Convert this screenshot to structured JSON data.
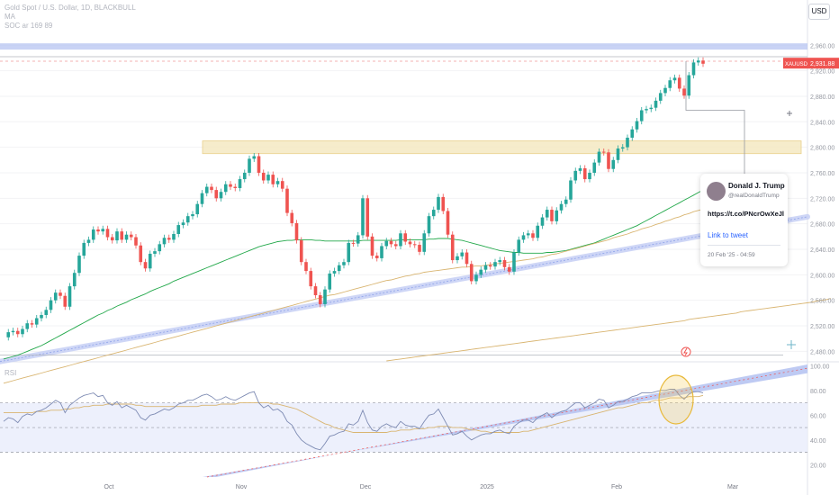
{
  "header": {
    "title": "Gold Spot / U.S. Dollar, 1D, BLACKBULL",
    "line2": "MA",
    "line3": "SOC ar 169 89",
    "currency_button": "USD"
  },
  "price_tag": {
    "symbol": "XAUUSD",
    "price": "2,931.88"
  },
  "tweet": {
    "name": "Donald J. Trump",
    "handle": "@realDonaldTrump",
    "link": "https://t.co/PNcrOwXeJl",
    "link_label": "Link to tweet",
    "date": "20 Feb '25 - 04:59"
  },
  "rsi_label": "RSI",
  "colors": {
    "up": "#26a69a",
    "down": "#ef5350",
    "ma_fast": "#22a84a",
    "ma_slow": "#d9b571",
    "band": "#b7c4f2",
    "zone": "#f5e9c3"
  },
  "chart_data": [
    {
      "type": "candlestick",
      "title": "Gold Spot / U.S. Dollar, 1D, BLACKBULL",
      "x_ticks": [
        "Oct",
        "Nov",
        "Dec",
        "2025",
        "Feb",
        "Mar"
      ],
      "y_ticks": [
        2480,
        2520,
        2560,
        2600,
        2640,
        2680,
        2720,
        2760,
        2800,
        2840,
        2880,
        2920,
        2960
      ],
      "y_tick_labels": [
        "2,480.00",
        "2,520.00",
        "2,560.00",
        "2,600.00",
        "2,640.00",
        "2,680.00",
        "2,720.00",
        "2,760.00",
        "2,800.00",
        "2,840.00",
        "2,880.00",
        "2,920.00",
        "2,960.00"
      ],
      "ylim": [
        2465,
        2990
      ],
      "last_price": 2931.88,
      "close": [
        2502,
        2510,
        2512,
        2507,
        2515,
        2524,
        2522,
        2532,
        2537,
        2545,
        2560,
        2572,
        2567,
        2550,
        2582,
        2603,
        2630,
        2650,
        2655,
        2671,
        2668,
        2672,
        2659,
        2654,
        2668,
        2655,
        2663,
        2659,
        2646,
        2620,
        2610,
        2633,
        2637,
        2648,
        2658,
        2655,
        2664,
        2678,
        2682,
        2692,
        2695,
        2711,
        2728,
        2738,
        2733,
        2720,
        2730,
        2742,
        2738,
        2736,
        2750,
        2760,
        2782,
        2786,
        2760,
        2748,
        2757,
        2742,
        2747,
        2735,
        2697,
        2681,
        2654,
        2620,
        2606,
        2582,
        2568,
        2554,
        2577,
        2602,
        2606,
        2615,
        2620,
        2650,
        2649,
        2662,
        2720,
        2660,
        2630,
        2626,
        2645,
        2653,
        2648,
        2645,
        2665,
        2652,
        2648,
        2647,
        2636,
        2665,
        2692,
        2702,
        2722,
        2700,
        2663,
        2623,
        2629,
        2635,
        2617,
        2590,
        2600,
        2608,
        2615,
        2613,
        2620,
        2623,
        2612,
        2605,
        2635,
        2655,
        2662,
        2665,
        2658,
        2677,
        2690,
        2702,
        2684,
        2701,
        2711,
        2718,
        2748,
        2763,
        2767,
        2750,
        2760,
        2776,
        2793,
        2792,
        2766,
        2780,
        2798,
        2800,
        2815,
        2828,
        2841,
        2858,
        2860,
        2862,
        2873,
        2885,
        2893,
        2905,
        2909,
        2892,
        2881,
        2913,
        2933,
        2936,
        2931
      ],
      "ma_fast": [
        2468,
        2470,
        2472,
        2474,
        2477,
        2480,
        2483,
        2486,
        2489,
        2493,
        2497,
        2501,
        2505,
        2509,
        2513,
        2517,
        2521,
        2525,
        2529,
        2533,
        2537,
        2540,
        2544,
        2547,
        2551,
        2554,
        2557,
        2561,
        2564,
        2567,
        2570,
        2574,
        2577,
        2580,
        2583,
        2586,
        2590,
        2593,
        2596,
        2599,
        2602,
        2605,
        2608,
        2611,
        2614,
        2617,
        2620,
        2623,
        2626,
        2629,
        2632,
        2635,
        2638,
        2641,
        2644,
        2646,
        2648,
        2650,
        2652,
        2653,
        2654,
        2654,
        2655,
        2655,
        2655,
        2655,
        2654,
        2654,
        2653,
        2653,
        2653,
        2653,
        2653,
        2653,
        2653,
        2653,
        2654,
        2654,
        2654,
        2654,
        2654,
        2654,
        2654,
        2654,
        2655,
        2655,
        2655,
        2655,
        2655,
        2655,
        2656,
        2656,
        2657,
        2657,
        2657,
        2656,
        2655,
        2654,
        2652,
        2650,
        2648,
        2646,
        2644,
        2642,
        2640,
        2638,
        2637,
        2636,
        2635,
        2635,
        2634,
        2634,
        2634,
        2634,
        2634,
        2635,
        2635,
        2636,
        2637,
        2638,
        2640,
        2642,
        2644,
        2646,
        2648,
        2650,
        2653,
        2656,
        2659,
        2662,
        2665,
        2668,
        2671,
        2674,
        2677,
        2681,
        2685,
        2689,
        2693,
        2697,
        2701,
        2705,
        2709,
        2713,
        2717,
        2721,
        2725,
        2729,
        2733
      ],
      "ma_slow": [
        2430,
        2432,
        2434,
        2436,
        2438,
        2440,
        2442,
        2444,
        2446,
        2448,
        2450,
        2452,
        2454,
        2456,
        2458,
        2460,
        2462,
        2464,
        2466,
        2468,
        2470,
        2472,
        2474,
        2476,
        2478,
        2480,
        2482,
        2484,
        2486,
        2488,
        2490,
        2492,
        2494,
        2496,
        2498,
        2500,
        2502,
        2504,
        2506,
        2508,
        2510,
        2512,
        2514,
        2516,
        2518,
        2520,
        2522,
        2524,
        2526,
        2528,
        2530,
        2532,
        2534,
        2536,
        2538,
        2540,
        2542,
        2544,
        2546,
        2548,
        2550,
        2552,
        2554,
        2556,
        2558,
        2560,
        2562,
        2564,
        2566,
        2568,
        2569,
        2571,
        2573,
        2575,
        2577,
        2579,
        2581,
        2583,
        2585,
        2587,
        2589,
        2591,
        2592,
        2594,
        2596,
        2598,
        2599,
        2601,
        2602,
        2604,
        2605,
        2606,
        2607,
        2608,
        2609,
        2610,
        2611,
        2612,
        2612,
        2613,
        2614,
        2614,
        2615,
        2616,
        2617,
        2618,
        2619,
        2620,
        2621,
        2622,
        2623,
        2624,
        2625,
        2627,
        2628,
        2630,
        2632,
        2633,
        2635,
        2637,
        2639,
        2641,
        2643,
        2645,
        2647,
        2649,
        2651,
        2653,
        2655,
        2658,
        2660,
        2662,
        2664,
        2667,
        2669,
        2672,
        2674,
        2676,
        2679,
        2681,
        2684,
        2686,
        2689,
        2691,
        2694,
        2696,
        2699,
        2701,
        2703
      ],
      "ma_slow2": [
        2465,
        2466,
        2467,
        2468,
        2469,
        2470,
        2471,
        2472,
        2473,
        2474,
        2475,
        2476,
        2477,
        2478,
        2479,
        2480,
        2481,
        2482,
        2483,
        2484,
        2485,
        2486,
        2487,
        2488,
        2489,
        2490,
        2491,
        2492,
        2493,
        2494,
        2495,
        2496,
        2497,
        2498,
        2499,
        2500,
        2501,
        2502,
        2503,
        2504,
        2505,
        2506,
        2507,
        2508,
        2509,
        2510,
        2511,
        2512,
        2513,
        2514,
        2515,
        2516,
        2517,
        2518,
        2519,
        2520,
        2521,
        2522,
        2523,
        2524,
        2525,
        2526,
        2527,
        2528,
        2530,
        2531,
        2532,
        2533,
        2534,
        2535,
        2536,
        2537,
        2538,
        2539,
        2540,
        2542,
        2543,
        2544,
        2545,
        2546,
        2547,
        2548,
        2549,
        2550,
        2551,
        2552,
        2553,
        2554,
        2555,
        2556,
        2557,
        2559,
        2560,
        2561,
        2563
      ]
    },
    {
      "type": "line",
      "title": "RSI",
      "y_ticks": [
        20,
        40,
        60,
        80,
        100
      ],
      "y_tick_labels": [
        "20.00",
        "40.00",
        "60.00",
        "80.00",
        "100.00"
      ],
      "ylim": [
        10,
        101
      ],
      "levels": [
        30,
        50,
        70
      ],
      "rsi": [
        55,
        58,
        57,
        54,
        59,
        61,
        60,
        63,
        64,
        66,
        69,
        72,
        70,
        62,
        68,
        71,
        74,
        76,
        77,
        78,
        75,
        76,
        70,
        68,
        71,
        66,
        68,
        66,
        64,
        58,
        56,
        60,
        61,
        63,
        65,
        64,
        66,
        69,
        70,
        72,
        72,
        74,
        76,
        77,
        75,
        72,
        73,
        75,
        73,
        72,
        74,
        76,
        78,
        79,
        70,
        66,
        68,
        64,
        65,
        62,
        55,
        52,
        45,
        40,
        37,
        35,
        33,
        32,
        37,
        43,
        44,
        46,
        47,
        53,
        52,
        55,
        64,
        54,
        48,
        47,
        51,
        53,
        51,
        50,
        55,
        52,
        51,
        51,
        49,
        55,
        60,
        61,
        65,
        58,
        51,
        44,
        45,
        47,
        43,
        40,
        42,
        44,
        45,
        45,
        47,
        48,
        46,
        45,
        51,
        54,
        56,
        56,
        54,
        58,
        60,
        62,
        58,
        61,
        63,
        64,
        67,
        70,
        70,
        66,
        68,
        70,
        73,
        72,
        66,
        68,
        71,
        71,
        73,
        75,
        76,
        78,
        78,
        78,
        79,
        80,
        80,
        81,
        81,
        76,
        73,
        77,
        79,
        79,
        78
      ],
      "rsi_ma": [
        62,
        62,
        62,
        62,
        62,
        62,
        62,
        63,
        63,
        63,
        64,
        64,
        64,
        65,
        65,
        66,
        66,
        67,
        67,
        68,
        68,
        68,
        69,
        69,
        69,
        69,
        69,
        69,
        68,
        68,
        67,
        67,
        67,
        67,
        67,
        67,
        67,
        67,
        67,
        67,
        67,
        67,
        68,
        68,
        68,
        68,
        69,
        69,
        69,
        69,
        70,
        70,
        70,
        70,
        70,
        70,
        70,
        69,
        69,
        68,
        67,
        66,
        65,
        63,
        61,
        59,
        57,
        55,
        53,
        52,
        50,
        49,
        48,
        47,
        46,
        46,
        46,
        46,
        46,
        46,
        46,
        46,
        47,
        47,
        48,
        48,
        48,
        49,
        49,
        49,
        50,
        50,
        51,
        51,
        51,
        50,
        50,
        50,
        49,
        48,
        48,
        47,
        47,
        46,
        46,
        46,
        46,
        46,
        46,
        46,
        47,
        47,
        48,
        49,
        50,
        51,
        52,
        53,
        54,
        55,
        56,
        57,
        58,
        59,
        60,
        61,
        62,
        63,
        64,
        65,
        66,
        66,
        67,
        68,
        69,
        70,
        70,
        71,
        72,
        72,
        73,
        74,
        74,
        74,
        74,
        75,
        75,
        75,
        76
      ]
    }
  ]
}
